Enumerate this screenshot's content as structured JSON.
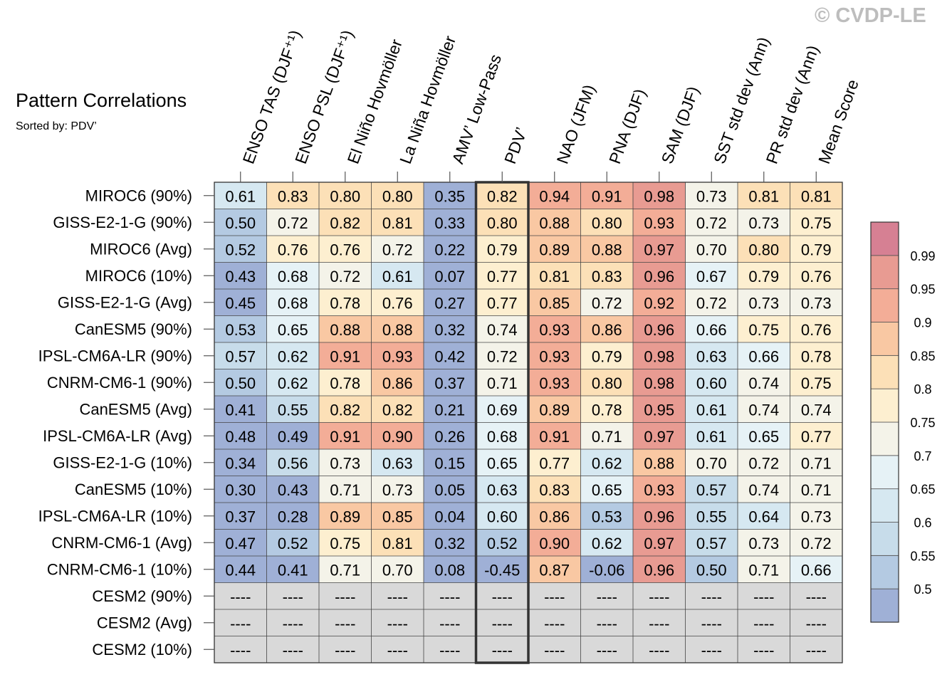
{
  "header": {
    "title": "Pattern Correlations",
    "subtitle": "Sorted by: PDV’",
    "watermark": "© CVDP-LE"
  },
  "chart_data": {
    "type": "heatmap",
    "title": "Pattern Correlations",
    "subtitle": "Sorted by: PDV’",
    "highlight_column": "PDV’",
    "columns": [
      "ENSO TAS (DJF⁺¹)",
      "ENSO PSL (DJF⁺¹)",
      "El Niño Hovmöller",
      "La Niña Hovmöller",
      "AMV’ Low-Pass",
      "PDV’",
      "NAO (JFM)",
      "PNA (DJF)",
      "SAM (DJF)",
      "SST std dev (Ann)",
      "PR std dev (Ann)",
      "Mean Score"
    ],
    "rows": [
      {
        "label": "MIROC6 (90%)",
        "values": [
          "0.61",
          "0.83",
          "0.80",
          "0.80",
          "0.35",
          "0.82",
          "0.94",
          "0.91",
          "0.98",
          "0.73",
          "0.81",
          "0.81"
        ]
      },
      {
        "label": "GISS-E2-1-G (90%)",
        "values": [
          "0.50",
          "0.72",
          "0.82",
          "0.81",
          "0.33",
          "0.80",
          "0.88",
          "0.80",
          "0.93",
          "0.72",
          "0.73",
          "0.75"
        ]
      },
      {
        "label": "MIROC6 (Avg)",
        "values": [
          "0.52",
          "0.76",
          "0.76",
          "0.72",
          "0.22",
          "0.79",
          "0.89",
          "0.88",
          "0.97",
          "0.70",
          "0.80",
          "0.79"
        ]
      },
      {
        "label": "MIROC6 (10%)",
        "values": [
          "0.43",
          "0.68",
          "0.72",
          "0.61",
          "0.07",
          "0.77",
          "0.81",
          "0.83",
          "0.96",
          "0.67",
          "0.79",
          "0.76"
        ]
      },
      {
        "label": "GISS-E2-1-G (Avg)",
        "values": [
          "0.45",
          "0.68",
          "0.78",
          "0.76",
          "0.27",
          "0.77",
          "0.85",
          "0.72",
          "0.92",
          "0.72",
          "0.73",
          "0.73"
        ]
      },
      {
        "label": "CanESM5 (90%)",
        "values": [
          "0.53",
          "0.65",
          "0.88",
          "0.88",
          "0.32",
          "0.74",
          "0.93",
          "0.86",
          "0.96",
          "0.66",
          "0.75",
          "0.76"
        ]
      },
      {
        "label": "IPSL-CM6A-LR (90%)",
        "values": [
          "0.57",
          "0.62",
          "0.91",
          "0.93",
          "0.42",
          "0.72",
          "0.93",
          "0.79",
          "0.98",
          "0.63",
          "0.66",
          "0.78"
        ]
      },
      {
        "label": "CNRM-CM6-1 (90%)",
        "values": [
          "0.50",
          "0.62",
          "0.78",
          "0.86",
          "0.37",
          "0.71",
          "0.93",
          "0.80",
          "0.98",
          "0.60",
          "0.74",
          "0.75"
        ]
      },
      {
        "label": "CanESM5 (Avg)",
        "values": [
          "0.41",
          "0.55",
          "0.82",
          "0.82",
          "0.21",
          "0.69",
          "0.89",
          "0.78",
          "0.95",
          "0.61",
          "0.74",
          "0.74"
        ]
      },
      {
        "label": "IPSL-CM6A-LR (Avg)",
        "values": [
          "0.48",
          "0.49",
          "0.91",
          "0.90",
          "0.26",
          "0.68",
          "0.91",
          "0.71",
          "0.97",
          "0.61",
          "0.65",
          "0.77"
        ]
      },
      {
        "label": "GISS-E2-1-G (10%)",
        "values": [
          "0.34",
          "0.56",
          "0.73",
          "0.63",
          "0.15",
          "0.65",
          "0.77",
          "0.62",
          "0.88",
          "0.70",
          "0.72",
          "0.71"
        ]
      },
      {
        "label": "CanESM5 (10%)",
        "values": [
          "0.30",
          "0.43",
          "0.71",
          "0.73",
          "0.05",
          "0.63",
          "0.83",
          "0.65",
          "0.93",
          "0.57",
          "0.74",
          "0.71"
        ]
      },
      {
        "label": "IPSL-CM6A-LR (10%)",
        "values": [
          "0.37",
          "0.28",
          "0.89",
          "0.85",
          "0.04",
          "0.60",
          "0.86",
          "0.53",
          "0.96",
          "0.55",
          "0.64",
          "0.73"
        ]
      },
      {
        "label": "CNRM-CM6-1 (Avg)",
        "values": [
          "0.47",
          "0.52",
          "0.75",
          "0.81",
          "0.32",
          "0.52",
          "0.90",
          "0.62",
          "0.97",
          "0.57",
          "0.73",
          "0.72"
        ]
      },
      {
        "label": "CNRM-CM6-1 (10%)",
        "values": [
          "0.44",
          "0.41",
          "0.71",
          "0.70",
          "0.08",
          "-0.45",
          "0.87",
          "-0.06",
          "0.96",
          "0.50",
          "0.71",
          "0.66"
        ]
      },
      {
        "label": "CESM2 (90%)",
        "values": [
          "----",
          "----",
          "----",
          "----",
          "----",
          "----",
          "----",
          "----",
          "----",
          "----",
          "----",
          "----"
        ]
      },
      {
        "label": "CESM2 (Avg)",
        "values": [
          "----",
          "----",
          "----",
          "----",
          "----",
          "----",
          "----",
          "----",
          "----",
          "----",
          "----",
          "----"
        ]
      },
      {
        "label": "CESM2 (10%)",
        "values": [
          "----",
          "----",
          "----",
          "----",
          "----",
          "----",
          "----",
          "----",
          "----",
          "----",
          "----",
          "----"
        ]
      }
    ],
    "missing_color": "#d9d9d9",
    "colorbar": {
      "labels": [
        "0.99",
        "0.95",
        "0.9",
        "0.85",
        "0.8",
        "0.75",
        "0.7",
        "0.65",
        "0.6",
        "0.55",
        "0.5"
      ],
      "boundaries": [
        0.5,
        0.55,
        0.6,
        0.65,
        0.7,
        0.75,
        0.8,
        0.85,
        0.9,
        0.95,
        0.99
      ],
      "colors": [
        "#9fb0d6",
        "#b4cae2",
        "#c7dcea",
        "#d6e8f1",
        "#e6f2f6",
        "#f4f3e9",
        "#fdefd0",
        "#fce0b7",
        "#f9c8a3",
        "#f3ad97",
        "#e89b92",
        "#d68093"
      ]
    }
  }
}
